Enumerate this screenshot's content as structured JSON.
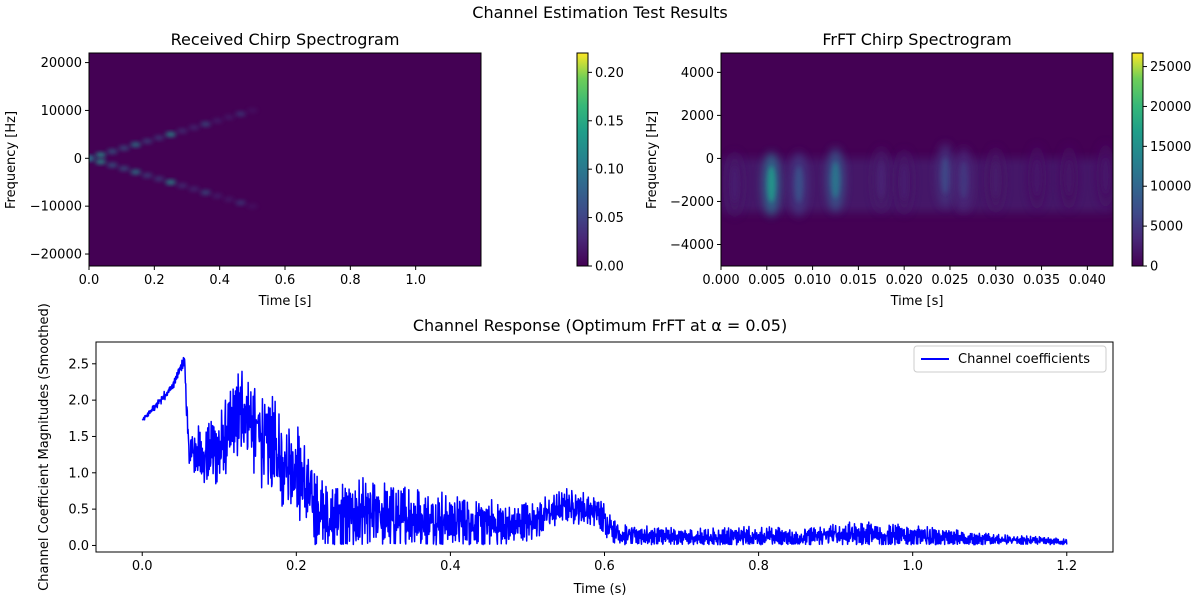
{
  "figure_title": "Channel Estimation Test Results",
  "chart_data": [
    {
      "type": "heatmap",
      "title": "Received Chirp Spectrogram",
      "xlabel": "Time [s]",
      "ylabel": "Frequency [Hz]",
      "xlim": [
        0.0,
        1.2
      ],
      "ylim": [
        -22500,
        22000
      ],
      "xticks": [
        "0.0",
        "0.2",
        "0.4",
        "0.6",
        "0.8",
        "1.0"
      ],
      "xtick_values": [
        0.0,
        0.2,
        0.4,
        0.6,
        0.8,
        1.0
      ],
      "yticks": [
        "20000",
        "10000",
        "0",
        "−10000",
        "−20000"
      ],
      "ytick_values": [
        20000,
        10000,
        0,
        -10000,
        -20000
      ],
      "colorbar": {
        "ticks": [
          "0.00",
          "0.05",
          "0.10",
          "0.15",
          "0.20"
        ],
        "tick_values": [
          0.0,
          0.05,
          0.1,
          0.15,
          0.2
        ],
        "range": [
          0.0,
          0.22
        ],
        "colormap": "viridis"
      },
      "chirp_ridges": [
        {
          "t_start": 0.0,
          "t_end": 0.5,
          "f_start": 0,
          "f_end": 10000
        },
        {
          "t_start": 0.0,
          "t_end": 0.5,
          "f_start": 0,
          "f_end": -10000
        }
      ],
      "grid": false
    },
    {
      "type": "heatmap",
      "title": "FrFT Chirp Spectrogram",
      "xlabel": "Time [s]",
      "ylabel": "Frequency [Hz]",
      "xlim": [
        0.0,
        0.0428
      ],
      "ylim": [
        -5000,
        4900
      ],
      "xticks": [
        "0.000",
        "0.005",
        "0.010",
        "0.015",
        "0.020",
        "0.025",
        "0.030",
        "0.035",
        "0.040"
      ],
      "xtick_values": [
        0.0,
        0.005,
        0.01,
        0.015,
        0.02,
        0.025,
        0.03,
        0.035,
        0.04
      ],
      "yticks": [
        "4000",
        "2000",
        "0",
        "−2000",
        "−4000"
      ],
      "ytick_values": [
        4000,
        2000,
        0,
        -2000,
        -4000
      ],
      "colorbar": {
        "ticks": [
          "0",
          "5000",
          "10000",
          "15000",
          "20000",
          "25000"
        ],
        "tick_values": [
          0,
          5000,
          10000,
          15000,
          20000,
          25000
        ],
        "range": [
          0,
          26700
        ],
        "colormap": "viridis"
      },
      "energy_blobs": [
        {
          "t": 0.0015,
          "f": -1200,
          "level": 2500
        },
        {
          "t": 0.0055,
          "f": -1200,
          "level": 16000
        },
        {
          "t": 0.0085,
          "f": -1200,
          "level": 7500
        },
        {
          "t": 0.0125,
          "f": -1000,
          "level": 12000
        },
        {
          "t": 0.0175,
          "f": -1000,
          "level": 3000
        },
        {
          "t": 0.02,
          "f": -1100,
          "level": 2500
        },
        {
          "t": 0.0245,
          "f": -800,
          "level": 6500
        },
        {
          "t": 0.0265,
          "f": -1000,
          "level": 5000
        },
        {
          "t": 0.03,
          "f": -1000,
          "level": 2200
        },
        {
          "t": 0.0345,
          "f": -900,
          "level": 2000
        },
        {
          "t": 0.038,
          "f": -900,
          "level": 1800
        },
        {
          "t": 0.042,
          "f": -800,
          "level": 2000
        }
      ],
      "grid": false
    },
    {
      "type": "line",
      "title": "Channel Response (Optimum FrFT at α = 0.05)",
      "xlabel": "Time (s)",
      "ylabel": "Channel Coefficient Magnitudes (Smoothed)",
      "xlim": [
        -0.06,
        1.26
      ],
      "ylim": [
        -0.09,
        2.8
      ],
      "xticks": [
        "0.0",
        "0.2",
        "0.4",
        "0.6",
        "0.8",
        "1.0",
        "1.2"
      ],
      "xtick_values": [
        0.0,
        0.2,
        0.4,
        0.6,
        0.8,
        1.0,
        1.2
      ],
      "yticks": [
        "0.0",
        "0.5",
        "1.0",
        "1.5",
        "2.0",
        "2.5"
      ],
      "ytick_values": [
        0.0,
        0.5,
        1.0,
        1.5,
        2.0,
        2.5
      ],
      "legend": "top-right",
      "grid": false,
      "series": [
        {
          "name": "Channel coefficients",
          "color": "#0000ff",
          "envelope": {
            "t": [
              0.0,
              0.02,
              0.04,
              0.05,
              0.055,
              0.06,
              0.08,
              0.1,
              0.13,
              0.16,
              0.2,
              0.23,
              0.3,
              0.4,
              0.48,
              0.52,
              0.55,
              0.59,
              0.62,
              0.7,
              0.8,
              0.85,
              0.9,
              0.95,
              1.0,
              1.1,
              1.2
            ],
            "mean": [
              1.72,
              1.95,
              2.2,
              2.45,
              2.55,
              1.3,
              1.25,
              1.3,
              1.9,
              1.4,
              1.05,
              0.4,
              0.4,
              0.35,
              0.25,
              0.4,
              0.55,
              0.45,
              0.15,
              0.1,
              0.12,
              0.1,
              0.15,
              0.15,
              0.12,
              0.08,
              0.05
            ],
            "amp": [
              0.02,
              0.05,
              0.05,
              0.05,
              0.08,
              0.25,
              0.35,
              0.4,
              0.5,
              0.55,
              0.55,
              0.4,
              0.4,
              0.3,
              0.25,
              0.2,
              0.18,
              0.2,
              0.13,
              0.1,
              0.12,
              0.1,
              0.13,
              0.14,
              0.12,
              0.07,
              0.03
            ]
          }
        }
      ]
    }
  ]
}
